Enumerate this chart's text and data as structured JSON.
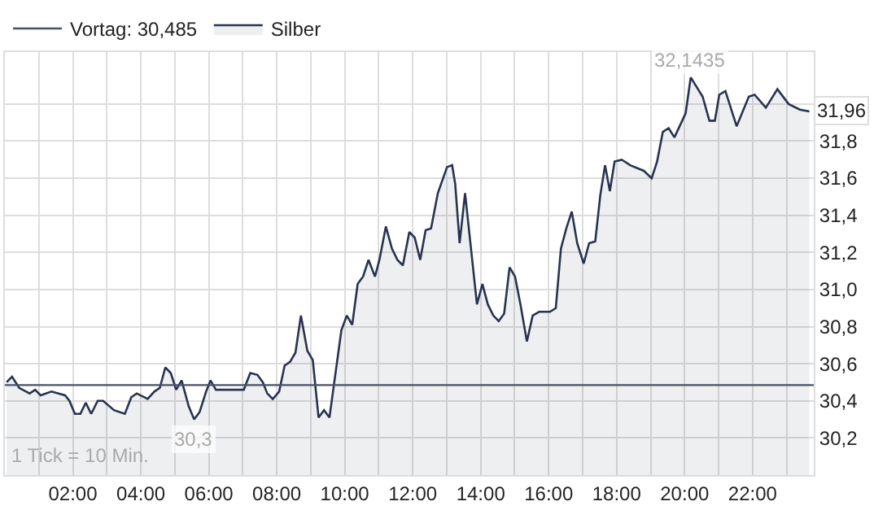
{
  "chart_data": {
    "type": "area",
    "x": [
      0.05,
      0.21,
      0.42,
      0.73,
      0.89,
      1.05,
      1.37,
      1.77,
      1.9,
      2.06,
      2.22,
      2.38,
      2.54,
      2.73,
      2.89,
      3.21,
      3.53,
      3.72,
      3.88,
      4.2,
      4.4,
      4.56,
      4.72,
      4.88,
      5.04,
      5.2,
      5.41,
      5.57,
      5.73,
      5.92,
      6.05,
      6.21,
      7.03,
      7.22,
      7.43,
      7.59,
      7.72,
      7.88,
      8.07,
      8.23,
      8.39,
      8.55,
      8.71,
      8.9,
      9.06,
      9.23,
      9.39,
      9.55,
      9.9,
      10.06,
      10.22,
      10.38,
      10.54,
      10.7,
      10.89,
      11.02,
      11.21,
      11.39,
      11.55,
      11.71,
      11.9,
      12.06,
      12.22,
      12.38,
      12.54,
      12.74,
      13.01,
      13.16,
      13.25,
      13.38,
      13.54,
      13.89,
      14.05,
      14.21,
      14.37,
      14.53,
      14.69,
      14.85,
      15.01,
      15.17,
      15.36,
      15.53,
      15.72,
      16.04,
      16.21,
      16.36,
      16.52,
      16.68,
      16.84,
      17.03,
      17.19,
      17.37,
      17.52,
      17.66,
      17.8,
      17.94,
      18.15,
      18.4,
      18.8,
      19.03,
      19.19,
      19.36,
      19.53,
      19.7,
      20.03,
      20.18,
      20.53,
      20.73,
      20.89,
      21.02,
      21.2,
      21.53,
      21.89,
      22.06,
      22.39,
      22.73,
      23.06,
      23.39,
      23.67
    ],
    "series": [
      {
        "name": "Silber",
        "color": "#283350",
        "values": [
          30.5,
          30.53,
          30.47,
          30.44,
          30.46,
          30.43,
          30.45,
          30.43,
          30.4,
          30.33,
          30.33,
          30.39,
          30.33,
          30.4,
          30.4,
          30.35,
          30.33,
          30.42,
          30.44,
          30.41,
          30.45,
          30.47,
          30.58,
          30.55,
          30.46,
          30.51,
          30.37,
          30.3,
          30.34,
          30.45,
          30.51,
          30.46,
          30.46,
          30.55,
          30.54,
          30.5,
          30.44,
          30.41,
          30.45,
          30.59,
          30.61,
          30.66,
          30.86,
          30.67,
          30.62,
          30.31,
          30.35,
          30.31,
          30.78,
          30.86,
          30.81,
          31.03,
          31.07,
          31.16,
          31.07,
          31.16,
          31.34,
          31.22,
          31.16,
          31.13,
          31.31,
          31.28,
          31.16,
          31.32,
          31.33,
          31.52,
          31.66,
          31.67,
          31.57,
          31.25,
          31.52,
          30.92,
          31.03,
          30.92,
          30.86,
          30.83,
          30.87,
          31.12,
          31.07,
          30.92,
          30.72,
          30.86,
          30.88,
          30.88,
          30.9,
          31.22,
          31.33,
          31.42,
          31.25,
          31.14,
          31.25,
          31.26,
          31.51,
          31.67,
          31.53,
          31.69,
          31.7,
          31.67,
          31.64,
          31.6,
          31.69,
          31.85,
          31.87,
          31.82,
          31.95,
          32.1435,
          32.04,
          31.91,
          31.91,
          32.05,
          32.07,
          31.88,
          32.04,
          32.05,
          31.98,
          32.08,
          32.0,
          31.97,
          31.96
        ]
      }
    ],
    "ref_lines": [
      {
        "axis": "y",
        "value": 30.485,
        "label": "Vortag: 30,485",
        "color": "#4a5068"
      }
    ],
    "annotations": [
      {
        "text": "32,1435",
        "x": 20.18,
        "y": 32.1435
      },
      {
        "text": "30,3",
        "x": 5.57,
        "y": 30.3
      },
      {
        "text": "31,96",
        "x": 23.67,
        "y": 31.96
      },
      "1 Tick = 10 Min."
    ],
    "xlim": [
      0,
      23.8
    ],
    "ylim": [
      30.0,
      32.28
    ],
    "xticks": [
      {
        "value": 1,
        "label": null
      },
      {
        "value": 2,
        "label": "02:00"
      },
      {
        "value": 3,
        "label": null
      },
      {
        "value": 4,
        "label": "04:00"
      },
      {
        "value": 5,
        "label": null
      },
      {
        "value": 6,
        "label": "06:00"
      },
      {
        "value": 7,
        "label": null
      },
      {
        "value": 8,
        "label": "08:00"
      },
      {
        "value": 9,
        "label": null
      },
      {
        "value": 10,
        "label": "10:00"
      },
      {
        "value": 11,
        "label": null
      },
      {
        "value": 12,
        "label": "12:00"
      },
      {
        "value": 13,
        "label": null
      },
      {
        "value": 14,
        "label": "14:00"
      },
      {
        "value": 15,
        "label": null
      },
      {
        "value": 16,
        "label": "16:00"
      },
      {
        "value": 17,
        "label": null
      },
      {
        "value": 18,
        "label": "18:00"
      },
      {
        "value": 19,
        "label": null
      },
      {
        "value": 20,
        "label": "20:00"
      },
      {
        "value": 21,
        "label": null
      },
      {
        "value": 22,
        "label": "22:00"
      },
      {
        "value": 23,
        "label": null
      }
    ],
    "yticks": [
      {
        "value": 30.2,
        "label": "30,2"
      },
      {
        "value": 30.4,
        "label": "30,4"
      },
      {
        "value": 30.6,
        "label": "30,6"
      },
      {
        "value": 30.8,
        "label": "30,8"
      },
      {
        "value": 31.0,
        "label": "31,0"
      },
      {
        "value": 31.2,
        "label": "31,2"
      },
      {
        "value": 31.4,
        "label": "31,4"
      },
      {
        "value": 31.6,
        "label": "31,6"
      },
      {
        "value": 31.8,
        "label": "31,8"
      },
      {
        "value": 32.0,
        "label": null
      }
    ],
    "grid": true,
    "legend": "top left",
    "marker": "none",
    "line_style": "solid"
  }
}
